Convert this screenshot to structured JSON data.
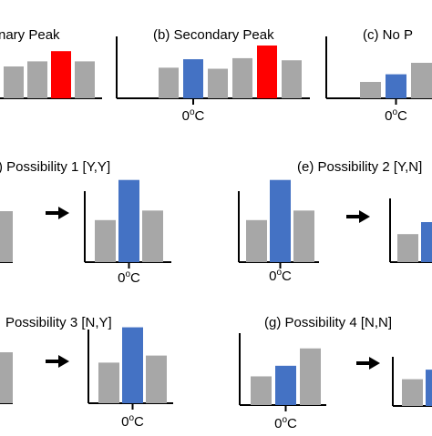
{
  "labels": {
    "a": "nary Peak",
    "b": "(b) Secondary Peak",
    "c": "(c) No P",
    "d": ") Possibility 1 [Y,Y]",
    "e": "(e) Possibility 2 [Y,N]",
    "f": "Possibility 3 [N,Y]",
    "g": "(g) Possibility 4 [N,N]"
  },
  "axis_label": {
    "base": "0",
    "sup": "o",
    "unit": "C"
  },
  "colors": {
    "gray": "#a7a7a7",
    "blue": "#4472c4",
    "red": "#ff0000",
    "axis": "#000000",
    "arrow": "#000000"
  },
  "chart_data": [
    {
      "id": "a",
      "type": "bar",
      "title": "nary Peak",
      "values": [
        0.5,
        0.58,
        0.74,
        0.58
      ],
      "colors": [
        "gray",
        "gray",
        "red",
        "gray"
      ]
    },
    {
      "id": "b",
      "type": "bar",
      "title": "(b) Secondary Peak",
      "xlabel": "0oC",
      "values": [
        0.58,
        0.74,
        0.56,
        0.76,
        1.0,
        0.72
      ],
      "colors": [
        "gray",
        "blue",
        "gray",
        "gray",
        "red",
        "gray"
      ]
    },
    {
      "id": "c",
      "type": "bar",
      "title": "(c) No P",
      "xlabel": "0oC",
      "values": [
        0.3,
        0.44,
        0.65
      ],
      "colors": [
        "gray",
        "blue",
        "gray"
      ]
    },
    {
      "id": "d-left",
      "type": "bar",
      "values": [
        0.8
      ],
      "colors": [
        "gray"
      ]
    },
    {
      "id": "d-right",
      "type": "bar",
      "xlabel": "0oC",
      "values": [
        0.44,
        0.86,
        0.54
      ],
      "colors": [
        "gray",
        "blue",
        "gray"
      ]
    },
    {
      "id": "e-left",
      "type": "bar",
      "xlabel": "0oC",
      "values": [
        0.44,
        0.86,
        0.54
      ],
      "colors": [
        "gray",
        "blue",
        "gray"
      ]
    },
    {
      "id": "e-right",
      "type": "bar",
      "values": [
        0.28,
        0.4
      ],
      "colors": [
        "gray",
        "blue"
      ]
    },
    {
      "id": "f-left",
      "type": "bar",
      "values": [
        0.8
      ],
      "colors": [
        "gray"
      ]
    },
    {
      "id": "f-right",
      "type": "bar",
      "xlabel": "0oC",
      "values": [
        0.46,
        0.86,
        0.54
      ],
      "colors": [
        "gray",
        "blue",
        "gray"
      ]
    },
    {
      "id": "g-left",
      "type": "bar",
      "xlabel": "0oC",
      "values": [
        0.38,
        0.52,
        0.75
      ],
      "colors": [
        "gray",
        "blue",
        "gray"
      ]
    },
    {
      "id": "g-right",
      "type": "bar",
      "values": [
        0.28,
        0.38
      ],
      "colors": [
        "gray",
        "blue"
      ]
    }
  ],
  "arrows": [
    "d",
    "e",
    "f",
    "g"
  ]
}
